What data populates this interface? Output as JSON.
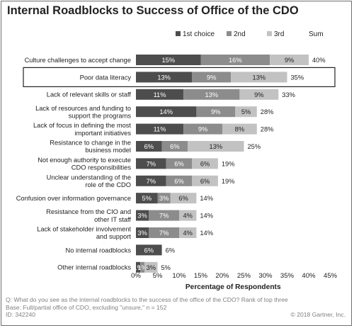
{
  "title": "Internal Roadblocks to Success of Office of the CDO",
  "footer": {
    "question": "Q: What do you see as the internal roadblocks to the success of the office of the CDO? Rank of top three",
    "base": "Base: Full/partial office of CDO, excluding \"unsure,\" n = 152",
    "id": "ID: 342240",
    "copyright": "© 2018 Gartner, Inc."
  },
  "colors": {
    "first": "#4d4d4d",
    "second": "#8c8c8c",
    "third": "#c2c2c2"
  },
  "chart_data": {
    "type": "bar",
    "orientation": "horizontal",
    "stacked": true,
    "categories": [
      "Culture challenges to accept change",
      "Poor data literacy",
      "Lack of relevant skills or staff",
      "Lack of resources and funding to support the programs",
      "Lack of focus in defining the most important initiatives",
      "Resistance to change in the business model",
      "Not enough authority to execute CDO responsibilities",
      "Unclear understanding of the role of the CDO",
      "Confusion over information governance",
      "Resistance from the CIO and other IT staff",
      "Lack of stakeholder involvement and support",
      "No internal roadblocks",
      "Other internal roadblocks"
    ],
    "category_lines": [
      [
        "Culture challenges to accept change"
      ],
      [
        "Poor data literacy"
      ],
      [
        "Lack of relevant skills or staff"
      ],
      [
        "Lack of resources and funding to",
        "support the programs"
      ],
      [
        "Lack of focus in defining the most",
        "important initiatives"
      ],
      [
        "Resistance to change in the",
        "business model"
      ],
      [
        "Not enough authority to execute",
        "CDO responsibilities"
      ],
      [
        "Unclear understanding of the",
        "role of the CDO"
      ],
      [
        "Confusion over information governance"
      ],
      [
        "Resistance from the CIO and",
        "other IT staff"
      ],
      [
        "Lack of stakeholder involvement",
        "and support"
      ],
      [
        "No internal roadblocks"
      ],
      [
        "Other internal roadblocks"
      ]
    ],
    "series": [
      {
        "name": "1st choice",
        "values": [
          15,
          13,
          11,
          14,
          11,
          6,
          7,
          7,
          5,
          3,
          3,
          6,
          1
        ]
      },
      {
        "name": "2nd",
        "values": [
          16,
          9,
          13,
          9,
          9,
          6,
          6,
          6,
          3,
          7,
          7,
          null,
          1
        ]
      },
      {
        "name": "3rd",
        "values": [
          9,
          13,
          9,
          5,
          8,
          13,
          6,
          6,
          6,
          4,
          4,
          null,
          3
        ]
      }
    ],
    "sum": {
      "name": "Sum",
      "values": [
        40,
        35,
        33,
        28,
        28,
        25,
        19,
        19,
        14,
        14,
        14,
        6,
        5
      ]
    },
    "segment_labels": [
      [
        "15%",
        "16%",
        "9%"
      ],
      [
        "13%",
        "9%",
        "13%"
      ],
      [
        "11%",
        "13%",
        "9%"
      ],
      [
        "14%",
        "9%",
        "5%"
      ],
      [
        "11%",
        "9%",
        "8%"
      ],
      [
        "6%",
        "6%",
        "13%"
      ],
      [
        "7%",
        "6%",
        "6%"
      ],
      [
        "7%",
        "6%",
        "6%"
      ],
      [
        "5%",
        "3%",
        "6%"
      ],
      [
        "3%",
        "7%",
        "4%"
      ],
      [
        "3%",
        "7%",
        "4%"
      ],
      [
        "6%",
        "",
        ""
      ],
      [
        "1%",
        "1%",
        "3%"
      ]
    ],
    "sum_labels": [
      "40%",
      "35%",
      "33%",
      "28%",
      "28%",
      "25%",
      "19%",
      "19%",
      "14%",
      "14%",
      "14%",
      "6%",
      "5%"
    ],
    "highlighted_category": "Poor data literacy",
    "xlabel": "Percentage of Respondents",
    "xlim": [
      0,
      45
    ],
    "xticks": [
      "0%",
      "5%",
      "10%",
      "15%",
      "20%",
      "25%",
      "30%",
      "35%",
      "40%",
      "45%"
    ],
    "legend_position": "top",
    "grid": false
  }
}
